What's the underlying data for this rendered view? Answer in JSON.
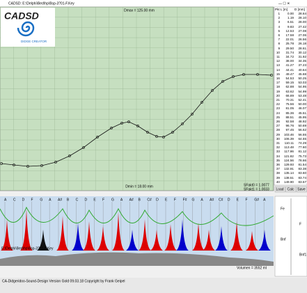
{
  "window_title": "CADSD: E:\\Delphi\\Bed\\hp\\Bsp-3?01-F.Key",
  "logo": {
    "title": "CADSD",
    "subtitle": "DIDGE CREATOR"
  },
  "profile": {
    "dmax": "Dmax = 125.00 mm",
    "dmin": "Dmin = 18.00 mm",
    "sfakt0": "SFakt0 = 1.0077",
    "sfakt1": "SFakt1 = 1.0033"
  },
  "table": {
    "header": [
      "Pkt",
      "L [m]",
      "D [mm]"
    ],
    "rows": [
      [
        "1",
        "0.00",
        "28.64"
      ],
      [
        "2",
        "1.19",
        "28.10"
      ],
      [
        "3",
        "6.51",
        "28.00"
      ],
      [
        "4",
        "9.83",
        "27.42"
      ],
      [
        "5",
        "12.53",
        "27.08"
      ],
      [
        "6",
        "17.58",
        "27.06"
      ],
      [
        "7",
        "22.01",
        "26.56"
      ],
      [
        "8",
        "25.78",
        "26.18"
      ],
      [
        "9",
        "29.50",
        "28.61"
      ],
      [
        "10",
        "31.74",
        "30.12"
      ],
      [
        "11",
        "34.72",
        "31.92"
      ],
      [
        "12",
        "38.00",
        "34.35"
      ],
      [
        "13",
        "41.27",
        "37.23"
      ],
      [
        "14",
        "44.41",
        "40.64"
      ],
      [
        "15",
        "49.47",
        "45.68"
      ],
      [
        "16",
        "54.53",
        "50.25"
      ],
      [
        "17",
        "59.15",
        "53.03"
      ],
      [
        "18",
        "62.88",
        "54.95"
      ],
      [
        "19",
        "63.62",
        "54.99"
      ],
      [
        "20",
        "66.89",
        "53.48"
      ],
      [
        "21",
        "70.31",
        "52.41"
      ],
      [
        "22",
        "75.56",
        "50.00"
      ],
      [
        "23",
        "81.05",
        "46.07"
      ],
      [
        "24",
        "85.36",
        "45.51"
      ],
      [
        "25",
        "88.51",
        "45.95"
      ],
      [
        "26",
        "92.58",
        "48.92"
      ],
      [
        "27",
        "96.76",
        "50.69"
      ],
      [
        "28",
        "97.45",
        "56.62"
      ],
      [
        "29",
        "103.46",
        "56.55"
      ],
      [
        "30",
        "106.39",
        "64.55"
      ],
      [
        "31",
        "110.11",
        "74.29"
      ],
      [
        "32",
        "113.48",
        "77.60"
      ],
      [
        "33",
        "117.86",
        "81.12"
      ],
      [
        "34",
        "121.82",
        "75.73"
      ],
      [
        "35",
        "124.56",
        "78.66"
      ],
      [
        "36",
        "129.93",
        "81.54"
      ],
      [
        "37",
        "132.91",
        "83.38"
      ],
      [
        "38",
        "135.14",
        "83.60"
      ],
      [
        "39",
        "138.51",
        "83.74"
      ],
      [
        "40",
        "149.90",
        "83.57"
      ]
    ]
  },
  "buttons": [
    "Load",
    "Calc",
    "Save"
  ],
  "notes": [
    "A",
    "C",
    "D",
    "F",
    "G",
    "A",
    "A#",
    "B",
    "C",
    "D",
    "E",
    "F",
    "G",
    "A",
    "A#",
    "B",
    "C#",
    "D",
    "E",
    "F",
    "F#",
    "G",
    "A",
    "A#",
    "C#",
    "D",
    "E",
    "F",
    "G#",
    "A"
  ],
  "spectrum": {
    "file": "E:\\Delphi\\Bed\\hp\\Bsp-3?01-F.Key",
    "volume": "Volumen = 3552 ml"
  },
  "side_panel": {
    "labels": [
      "Fe",
      "F",
      "Bnf",
      "Bnf1"
    ]
  },
  "status": "CA-Didgeridoo-Sound-Design Version Gold 09.03.18 Copyright by Frank Geipel"
}
